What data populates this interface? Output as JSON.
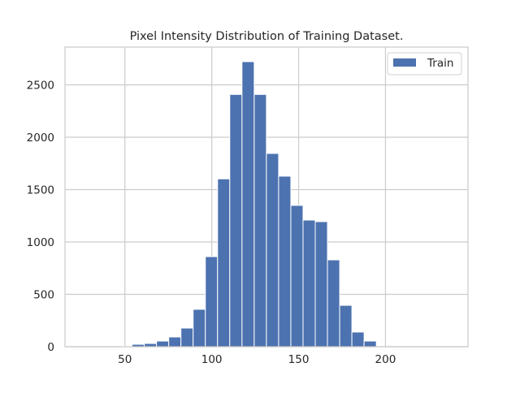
{
  "chart_data": {
    "type": "bar",
    "subtype": "histogram",
    "title": "Pixel Intensity Distribution of Training Dataset.",
    "xlabel": "",
    "ylabel": "",
    "xlim": [
      15.5,
      247.5
    ],
    "ylim": [
      0,
      2860
    ],
    "grid": true,
    "legend_position": "top-right",
    "bin_start": 26.0,
    "bin_width": 7.03,
    "series": [
      {
        "name": "Train",
        "color": "#4c72b0",
        "values": [
          0,
          0,
          0,
          5,
          23,
          31,
          54,
          93,
          178,
          357,
          860,
          1602,
          2408,
          2721,
          2408,
          1845,
          1628,
          1349,
          1209,
          1194,
          829,
          395,
          140,
          54,
          0,
          0,
          0,
          0,
          0,
          0
        ]
      }
    ],
    "x_ticks": [
      50,
      100,
      150,
      200
    ],
    "x_tick_labels": [
      "50",
      "100",
      "150",
      "200"
    ],
    "y_ticks": [
      0,
      500,
      1000,
      1500,
      2000,
      2500
    ],
    "y_tick_labels": [
      "0",
      "500",
      "1000",
      "1500",
      "2000",
      "2500"
    ]
  }
}
